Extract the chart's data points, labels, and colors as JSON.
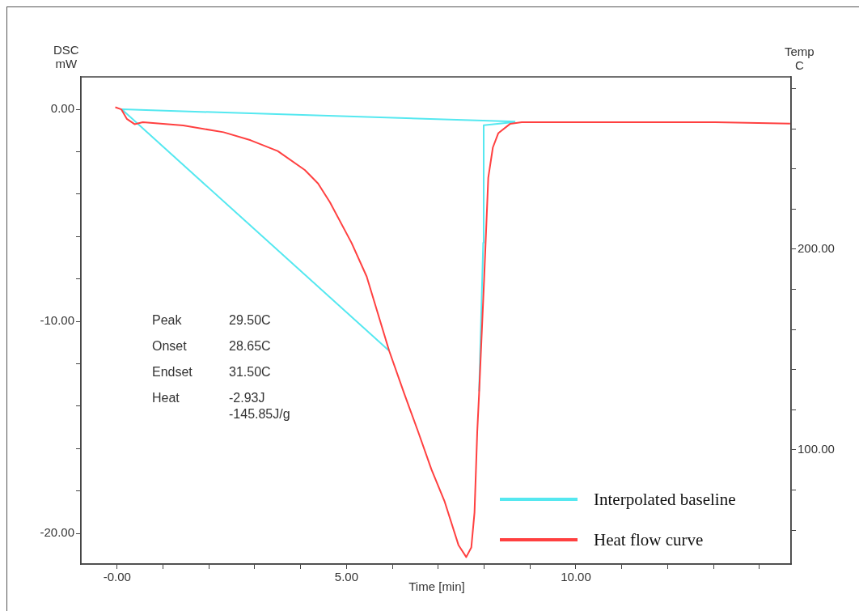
{
  "chart_data": {
    "type": "line",
    "xlabel": "Time  [min]",
    "ylabel": "DSC\nmW",
    "y2label": "Temp\nC",
    "xlim": [
      -0.79,
      14.69
    ],
    "ylim": [
      -21.45,
      1.53
    ],
    "xticks": [
      {
        "value": 0,
        "label": "-0.00"
      },
      {
        "value": 1,
        "label": null
      },
      {
        "value": 2,
        "label": null
      },
      {
        "value": 3,
        "label": null
      },
      {
        "value": 4,
        "label": null
      },
      {
        "value": 5,
        "label": "5.00"
      },
      {
        "value": 6,
        "label": null
      },
      {
        "value": 7,
        "label": null
      },
      {
        "value": 8,
        "label": null
      },
      {
        "value": 9,
        "label": null
      },
      {
        "value": 10,
        "label": "10.00"
      },
      {
        "value": 11,
        "label": null
      },
      {
        "value": 12,
        "label": null
      },
      {
        "value": 13,
        "label": null
      },
      {
        "value": 14,
        "label": null
      }
    ],
    "yticks": [
      {
        "value": 0,
        "label": "0.00"
      },
      {
        "value": -2,
        "label": null
      },
      {
        "value": -4,
        "label": null
      },
      {
        "value": -6,
        "label": null
      },
      {
        "value": -8,
        "label": null
      },
      {
        "value": -10,
        "label": "-10.00"
      },
      {
        "value": -12,
        "label": null
      },
      {
        "value": -14,
        "label": null
      },
      {
        "value": -16,
        "label": null
      },
      {
        "value": -18,
        "label": null
      },
      {
        "value": -20,
        "label": "-20.00"
      }
    ],
    "y2lim": [
      43.1,
      285.9
    ],
    "y2ticks": [
      {
        "value": 60,
        "label": null
      },
      {
        "value": 80,
        "label": null
      },
      {
        "value": 100,
        "label": "100.00"
      },
      {
        "value": 120,
        "label": null
      },
      {
        "value": 140,
        "label": null
      },
      {
        "value": 160,
        "label": null
      },
      {
        "value": 180,
        "label": null
      },
      {
        "value": 200,
        "label": "200.00"
      },
      {
        "value": 220,
        "label": null
      },
      {
        "value": 240,
        "label": null
      },
      {
        "value": 260,
        "label": null
      },
      {
        "value": 280,
        "label": null
      }
    ],
    "grid": false,
    "legend": "bottom right",
    "marker": "none",
    "line_style": "solid",
    "annotations": [
      "Peak",
      "29.50C",
      "Onset",
      "28.65C",
      "Endset",
      "31.50C",
      "Heat",
      "-2.93J\n-145.85J/g"
    ],
    "series": [
      {
        "name": "Interpolated baseline",
        "color": "#55e8f0",
        "x": [
          0.1,
          8.68,
          null,
          0.1,
          5.93,
          null,
          7.89,
          7.98,
          7.99,
          8.68
        ],
        "values": [
          0,
          -0.58,
          null,
          0,
          -11.39,
          null,
          -13.3,
          -6.3,
          -0.75,
          -0.6
        ]
      },
      {
        "name": "Heat flow curve",
        "color": "#ff4040",
        "x": [
          -0.04,
          0.09,
          0.21,
          0.38,
          0.56,
          1.44,
          2.32,
          2.91,
          3.5,
          4.09,
          4.38,
          4.64,
          5.11,
          5.44,
          5.93,
          6.26,
          6.56,
          6.85,
          7.14,
          7.44,
          7.61,
          7.72,
          7.79,
          7.85,
          7.89,
          8.0,
          8.09,
          8.19,
          8.31,
          8.57,
          8.82,
          13.04,
          14.67
        ],
        "values": [
          0.1,
          0,
          -0.45,
          -0.7,
          -0.61,
          -0.76,
          -1.08,
          -1.46,
          -1.97,
          -2.86,
          -3.5,
          -4.39,
          -6.3,
          -7.89,
          -11.39,
          -13.42,
          -15.2,
          -16.98,
          -18.51,
          -20.55,
          -21.12,
          -20.67,
          -19.02,
          -15.2,
          -13.42,
          -8,
          -3.23,
          -1.8,
          -1.12,
          -0.68,
          -0.61,
          -0.61,
          -0.67
        ]
      }
    ]
  }
}
